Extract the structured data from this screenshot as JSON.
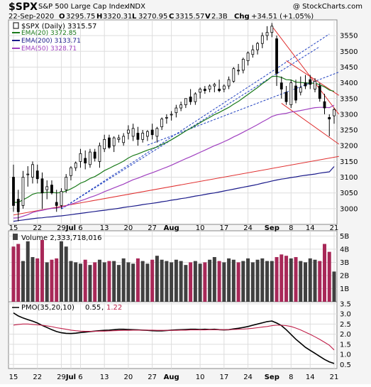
{
  "header": {
    "symbol": "$SPX",
    "name": "S&P 500 Large Cap Index",
    "exchange": "INDX",
    "copyright": "@ StockCharts.com",
    "date": "22-Sep-2020",
    "open_label": "O",
    "open": "3295.75",
    "high_label": "H",
    "high": "3320.31",
    "low_label": "L",
    "low": "3270.95",
    "close_label": "C",
    "close": "3315.57",
    "volume_label": "V",
    "volume": "2.3B",
    "chg_label": "Chg",
    "chg": "+34.51 (+1.05%)"
  },
  "price_legend": [
    {
      "label": "$SPX (Daily) 3315.57",
      "color": "#000000",
      "marker": "candle"
    },
    {
      "label": "EMA(20) 3372.85",
      "color": "#1a7a1a",
      "marker": "line"
    },
    {
      "label": "EMA(200) 3133.71",
      "color": "#1a1a8a",
      "marker": "line"
    },
    {
      "label": "EMA(50) 3328.71",
      "color": "#a040c0",
      "marker": "line"
    }
  ],
  "volume_legend": {
    "label": "Volume 2,333,718,016"
  },
  "pmo_legend": {
    "prefix": "PMO(35,20,10)",
    "value1": "0.55",
    "value2": "1.22",
    "color1": "#000000",
    "color2": "#c0204a"
  },
  "x_axis": {
    "ticks": [
      {
        "label": "15",
        "day": 0
      },
      {
        "label": "22",
        "day": 5
      },
      {
        "label": "29",
        "day": 10
      },
      {
        "label": "Jul",
        "day": 12,
        "bold": true
      },
      {
        "label": "6",
        "day": 14
      },
      {
        "label": "13",
        "day": 19
      },
      {
        "label": "20",
        "day": 24
      },
      {
        "label": "27",
        "day": 29
      },
      {
        "label": "Aug",
        "day": 33,
        "bold": true
      },
      {
        "label": "10",
        "day": 39
      },
      {
        "label": "17",
        "day": 44
      },
      {
        "label": "24",
        "day": 49
      },
      {
        "label": "Sep",
        "day": 54,
        "bold": true
      },
      {
        "label": "8",
        "day": 58
      },
      {
        "label": "14",
        "day": 62
      },
      {
        "label": "21",
        "day": 67
      }
    ]
  },
  "chart_data": [
    {
      "type": "candlestick",
      "title": "$SPX (Daily) 3315.57",
      "ylim": [
        2950,
        3600
      ],
      "yticks": [
        3000,
        3050,
        3100,
        3150,
        3200,
        3250,
        3300,
        3350,
        3400,
        3450,
        3500,
        3550
      ],
      "days": 68,
      "ohlc": [
        [
          3100,
          3140,
          2990,
          3010
        ],
        [
          3030,
          3060,
          2960,
          2990
        ],
        [
          3010,
          3120,
          3000,
          3100
        ],
        [
          3110,
          3135,
          3070,
          3110
        ],
        [
          3100,
          3150,
          3080,
          3140
        ],
        [
          3120,
          3140,
          3080,
          3095
        ],
        [
          3095,
          3115,
          2999,
          3050
        ],
        [
          3060,
          3090,
          3030,
          3070
        ],
        [
          3075,
          3090,
          3045,
          3050
        ],
        [
          3020,
          3060,
          2990,
          3010
        ],
        [
          3010,
          3065,
          3000,
          3055
        ],
        [
          3060,
          3110,
          3050,
          3100
        ],
        [
          3105,
          3135,
          3090,
          3130
        ],
        [
          3130,
          3150,
          3120,
          3145
        ],
        [
          3150,
          3190,
          3130,
          3175
        ],
        [
          3160,
          3185,
          3125,
          3145
        ],
        [
          3140,
          3190,
          3130,
          3180
        ],
        [
          3180,
          3190,
          3150,
          3160
        ],
        [
          3150,
          3210,
          3130,
          3200
        ],
        [
          3190,
          3235,
          3180,
          3220
        ],
        [
          3225,
          3235,
          3190,
          3195
        ],
        [
          3200,
          3230,
          3180,
          3225
        ],
        [
          3220,
          3235,
          3210,
          3225
        ],
        [
          3210,
          3240,
          3200,
          3230
        ],
        [
          3240,
          3265,
          3220,
          3250
        ],
        [
          3230,
          3270,
          3215,
          3255
        ],
        [
          3240,
          3260,
          3200,
          3220
        ],
        [
          3220,
          3250,
          3210,
          3240
        ],
        [
          3230,
          3250,
          3215,
          3245
        ],
        [
          3250,
          3270,
          3220,
          3235
        ],
        [
          3230,
          3260,
          3210,
          3255
        ],
        [
          3260,
          3290,
          3250,
          3285
        ],
        [
          3290,
          3300,
          3270,
          3290
        ],
        [
          3300,
          3310,
          3280,
          3300
        ],
        [
          3305,
          3330,
          3290,
          3320
        ],
        [
          3320,
          3340,
          3310,
          3330
        ],
        [
          3330,
          3350,
          3320,
          3350
        ],
        [
          3355,
          3380,
          3330,
          3340
        ],
        [
          3340,
          3370,
          3330,
          3365
        ],
        [
          3370,
          3385,
          3350,
          3380
        ],
        [
          3380,
          3390,
          3365,
          3375
        ],
        [
          3380,
          3395,
          3370,
          3390
        ],
        [
          3390,
          3400,
          3370,
          3395
        ],
        [
          3380,
          3410,
          3370,
          3375
        ],
        [
          3380,
          3395,
          3370,
          3390
        ],
        [
          3390,
          3420,
          3380,
          3410
        ],
        [
          3405,
          3450,
          3400,
          3445
        ],
        [
          3440,
          3460,
          3425,
          3440
        ],
        [
          3440,
          3480,
          3430,
          3475
        ],
        [
          3470,
          3500,
          3455,
          3495
        ],
        [
          3490,
          3520,
          3480,
          3505
        ],
        [
          3505,
          3530,
          3490,
          3525
        ],
        [
          3525,
          3560,
          3510,
          3550
        ],
        [
          3550,
          3580,
          3535,
          3560
        ],
        [
          3560,
          3590,
          3545,
          3580
        ],
        [
          3540,
          3550,
          3390,
          3430
        ],
        [
          3400,
          3420,
          3350,
          3380
        ],
        [
          3370,
          3390,
          3330,
          3340
        ],
        [
          3330,
          3410,
          3320,
          3400
        ],
        [
          3390,
          3410,
          3335,
          3345
        ],
        [
          3370,
          3420,
          3360,
          3385
        ],
        [
          3400,
          3425,
          3380,
          3390
        ],
        [
          3410,
          3425,
          3380,
          3395
        ],
        [
          3380,
          3415,
          3370,
          3405
        ],
        [
          3390,
          3400,
          3340,
          3350
        ],
        [
          3340,
          3365,
          3300,
          3320
        ],
        [
          3290,
          3300,
          3230,
          3285
        ],
        [
          3295,
          3320,
          3270,
          3315
        ]
      ],
      "series": [
        {
          "name": "EMA(20)",
          "values": [
            3020,
            3020,
            3028,
            3036,
            3046,
            3050,
            3050,
            3052,
            3052,
            3050,
            3051,
            3056,
            3063,
            3071,
            3081,
            3087,
            3096,
            3102,
            3111,
            3121,
            3128,
            3136,
            3143,
            3151,
            3161,
            3169,
            3174,
            3180,
            3186,
            3191,
            3196,
            3204,
            3211,
            3219,
            3228,
            3237,
            3247,
            3255,
            3264,
            3273,
            3282,
            3290,
            3299,
            3306,
            3314,
            3322,
            3332,
            3341,
            3352,
            3363,
            3374,
            3385,
            3397,
            3408,
            3420,
            3421,
            3417,
            3410,
            3409,
            3402,
            3401,
            3400,
            3399,
            3399,
            3394,
            3387,
            3377,
            3373
          ]
        },
        {
          "name": "EMA(50)",
          "values": [
            2970,
            2971,
            2976,
            2981,
            2988,
            2992,
            2995,
            2998,
            3001,
            3002,
            3005,
            3009,
            3014,
            3019,
            3025,
            3030,
            3036,
            3041,
            3047,
            3054,
            3060,
            3066,
            3072,
            3078,
            3085,
            3092,
            3097,
            3103,
            3109,
            3114,
            3120,
            3126,
            3132,
            3138,
            3145,
            3152,
            3159,
            3165,
            3172,
            3179,
            3186,
            3193,
            3200,
            3206,
            3213,
            3220,
            3228,
            3235,
            3243,
            3251,
            3259,
            3267,
            3276,
            3284,
            3293,
            3298,
            3301,
            3303,
            3307,
            3309,
            3312,
            3315,
            3318,
            3321,
            3322,
            3322,
            3321,
            3329
          ]
        },
        {
          "name": "EMA(200)",
          "values": [
            2960,
            2962,
            2964,
            2966,
            2968,
            2970,
            2971,
            2973,
            2974,
            2976,
            2977,
            2979,
            2981,
            2983,
            2985,
            2987,
            2989,
            2991,
            2993,
            2995,
            2997,
            2999,
            3001,
            3004,
            3006,
            3008,
            3010,
            3013,
            3015,
            3017,
            3019,
            3022,
            3024,
            3027,
            3029,
            3032,
            3034,
            3037,
            3040,
            3042,
            3045,
            3048,
            3050,
            3053,
            3056,
            3059,
            3062,
            3065,
            3068,
            3071,
            3074,
            3077,
            3081,
            3084,
            3088,
            3091,
            3094,
            3096,
            3099,
            3101,
            3104,
            3106,
            3108,
            3110,
            3113,
            3115,
            3117,
            3134
          ]
        }
      ],
      "trendlines": [
        {
          "color": "#2040c0",
          "style": "dashed",
          "from": [
            10,
            2999
          ],
          "to": [
            66,
            3555
          ]
        },
        {
          "color": "#2040c0",
          "style": "dashed",
          "from": [
            28,
            3202
          ],
          "to": [
            68,
            3434
          ]
        },
        {
          "color": "#2040c0",
          "style": "dashed",
          "from": [
            10,
            2999
          ],
          "to": [
            64,
            3515
          ]
        },
        {
          "color": "#e03030",
          "style": "solid",
          "from": [
            0,
            2980
          ],
          "to": [
            68,
            3166
          ]
        },
        {
          "color": "#e03030",
          "style": "solid",
          "from": [
            54,
            3580
          ],
          "to": [
            68,
            3300
          ]
        },
        {
          "color": "#e03030",
          "style": "solid",
          "from": [
            56,
            3335
          ],
          "to": [
            68,
            3205
          ]
        },
        {
          "color": "#e03030",
          "style": "solid",
          "from": [
            57,
            3470
          ],
          "to": [
            68,
            3360
          ]
        }
      ]
    },
    {
      "type": "bar",
      "title": "Volume 2,333,718,016",
      "ylim": [
        0,
        5.4
      ],
      "yticks": [
        1,
        2,
        3,
        4,
        5
      ],
      "ytick_labels": [
        "1B",
        "2B",
        "3B",
        "4B",
        "5B"
      ],
      "values": [
        4.2,
        4.4,
        3.1,
        4.6,
        3.4,
        3.3,
        4.7,
        3.0,
        3.2,
        3.3,
        4.6,
        4.2,
        3.1,
        3.0,
        2.9,
        3.2,
        2.8,
        3.0,
        3.2,
        3.0,
        3.1,
        3.1,
        2.8,
        3.3,
        3.0,
        2.9,
        3.3,
        3.1,
        2.9,
        3.2,
        3.5,
        3.2,
        3.1,
        3.0,
        3.2,
        3.1,
        2.8,
        3.0,
        3.1,
        2.9,
        3.0,
        3.2,
        3.4,
        3.1,
        3.0,
        3.3,
        3.2,
        3.0,
        3.1,
        3.3,
        3.0,
        3.2,
        3.3,
        3.1,
        3.1,
        3.4,
        3.6,
        3.5,
        3.3,
        3.4,
        3.1,
        3.0,
        3.3,
        3.2,
        3.1,
        4.4,
        3.8,
        2.3
      ],
      "up": [
        0,
        0,
        1,
        1,
        1,
        0,
        0,
        1,
        0,
        0,
        1,
        1,
        1,
        1,
        1,
        0,
        1,
        0,
        1,
        1,
        0,
        1,
        1,
        1,
        1,
        1,
        0,
        1,
        1,
        0,
        1,
        1,
        1,
        1,
        1,
        1,
        1,
        0,
        1,
        1,
        0,
        1,
        1,
        0,
        1,
        1,
        1,
        0,
        1,
        1,
        1,
        1,
        1,
        1,
        1,
        0,
        0,
        0,
        1,
        0,
        1,
        1,
        1,
        1,
        0,
        0,
        0,
        1
      ]
    },
    {
      "type": "line",
      "title": "PMO(35,20,10) 0.55, 1.22",
      "ylim": [
        0.3,
        3.6
      ],
      "yticks": [
        0.5,
        1.0,
        1.5,
        2.0,
        2.5,
        3.0,
        3.5
      ],
      "ytick_labels": [
        "0.5",
        "1.0",
        "1.5",
        "2.0",
        "2.5",
        "3.0",
        "3.5"
      ],
      "series": [
        {
          "name": "PMO",
          "values": [
            3.05,
            2.9,
            2.8,
            2.72,
            2.64,
            2.55,
            2.43,
            2.33,
            2.22,
            2.13,
            2.07,
            2.04,
            2.03,
            2.05,
            2.08,
            2.1,
            2.13,
            2.15,
            2.17,
            2.19,
            2.2,
            2.22,
            2.24,
            2.24,
            2.23,
            2.22,
            2.21,
            2.2,
            2.19,
            2.17,
            2.16,
            2.16,
            2.18,
            2.2,
            2.21,
            2.22,
            2.23,
            2.24,
            2.24,
            2.23,
            2.24,
            2.23,
            2.24,
            2.22,
            2.21,
            2.22,
            2.26,
            2.29,
            2.33,
            2.38,
            2.44,
            2.5,
            2.56,
            2.62,
            2.65,
            2.55,
            2.42,
            2.22,
            1.98,
            1.75,
            1.55,
            1.35,
            1.2,
            1.05,
            0.9,
            0.75,
            0.63,
            0.55
          ]
        },
        {
          "name": "Signal",
          "values": [
            2.45,
            2.48,
            2.5,
            2.5,
            2.48,
            2.46,
            2.44,
            2.41,
            2.37,
            2.32,
            2.28,
            2.24,
            2.2,
            2.17,
            2.15,
            2.14,
            2.14,
            2.14,
            2.15,
            2.15,
            2.16,
            2.17,
            2.18,
            2.19,
            2.19,
            2.2,
            2.2,
            2.2,
            2.2,
            2.2,
            2.19,
            2.19,
            2.19,
            2.19,
            2.19,
            2.2,
            2.2,
            2.21,
            2.21,
            2.21,
            2.21,
            2.22,
            2.22,
            2.22,
            2.22,
            2.22,
            2.23,
            2.24,
            2.25,
            2.27,
            2.29,
            2.32,
            2.35,
            2.38,
            2.42,
            2.44,
            2.44,
            2.42,
            2.38,
            2.3,
            2.21,
            2.1,
            1.99,
            1.87,
            1.74,
            1.6,
            1.45,
            1.22
          ]
        }
      ]
    }
  ]
}
